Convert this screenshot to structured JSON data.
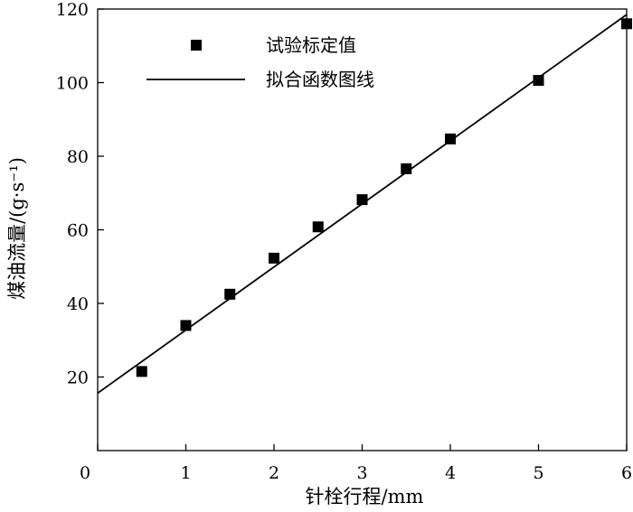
{
  "chart_data": {
    "type": "scatter",
    "xlabel": "针栓行程/mm",
    "ylabel": "煤油流量/(g·s⁻¹)",
    "xlim": [
      0,
      6
    ],
    "ylim": [
      0,
      120
    ],
    "xticks": [
      0,
      1,
      2,
      3,
      4,
      5,
      6
    ],
    "yticks": [
      20,
      40,
      60,
      80,
      100,
      120
    ],
    "grid": false,
    "legend_position": "top-left",
    "series": [
      {
        "name": "试验标定值",
        "kind": "scatter",
        "marker": "square",
        "color": "#000000",
        "x": [
          0.5,
          1.0,
          1.5,
          2.0,
          2.5,
          3.0,
          3.5,
          4.0,
          5.0,
          6.0
        ],
        "y": [
          21.5,
          34.0,
          42.5,
          52.3,
          60.8,
          68.2,
          76.6,
          84.7,
          100.6,
          116.0
        ]
      },
      {
        "name": "拟合函数图线",
        "kind": "line",
        "color": "#000000",
        "x": [
          0,
          6
        ],
        "y": [
          15.6,
          118.5
        ]
      }
    ]
  }
}
